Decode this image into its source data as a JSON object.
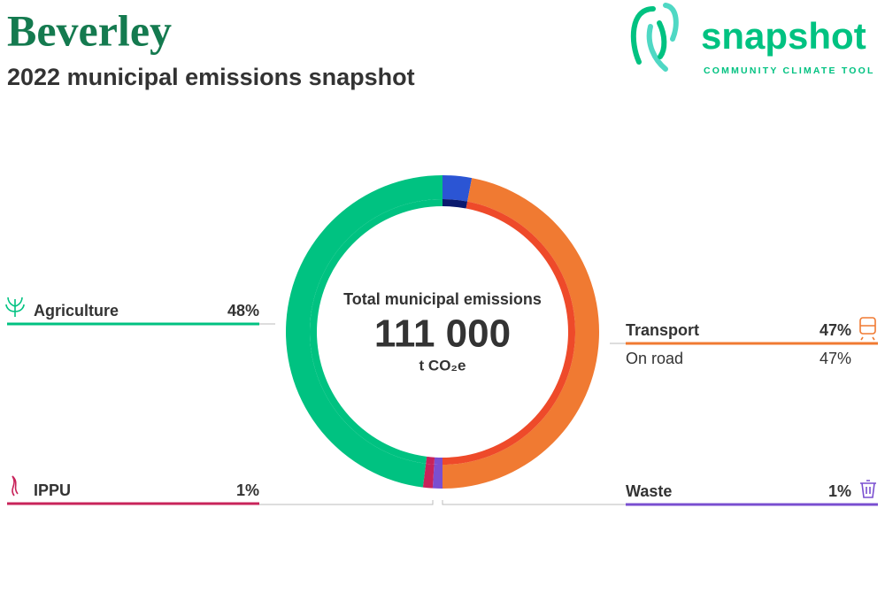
{
  "header": {
    "title": "Beverley",
    "subtitle": "2022 municipal emissions snapshot"
  },
  "logo": {
    "name": "snapshot",
    "tagline": "COMMUNITY CLIMATE TOOL"
  },
  "chart_data": {
    "type": "donut",
    "center_label": "Total municipal emissions",
    "total": {
      "value": 111000,
      "label": "111 000"
    },
    "unit": "t CO₂e",
    "categories": [
      null,
      "Transport",
      "Waste",
      "IPPU",
      "Agriculture"
    ],
    "values": [
      3,
      47,
      1,
      1,
      48
    ],
    "value_labels": [
      null,
      "47%",
      "1%",
      "1%",
      "48%"
    ],
    "colors": [
      "#2b55d4",
      "#f07a32",
      "#7a4fd0",
      "#c8235a",
      "#00c281"
    ],
    "inner_colors": [
      "#0b1a6e",
      "#ee4a2a",
      "#7a4fd0",
      "#c8235a",
      "#00c281"
    ],
    "sub_categories": [
      [],
      [
        "On road"
      ],
      [],
      [],
      []
    ],
    "sub_values": [
      [],
      [
        47
      ],
      [],
      [],
      []
    ],
    "sub_value_labels": [
      [],
      [
        "47%"
      ],
      [],
      [],
      []
    ]
  }
}
